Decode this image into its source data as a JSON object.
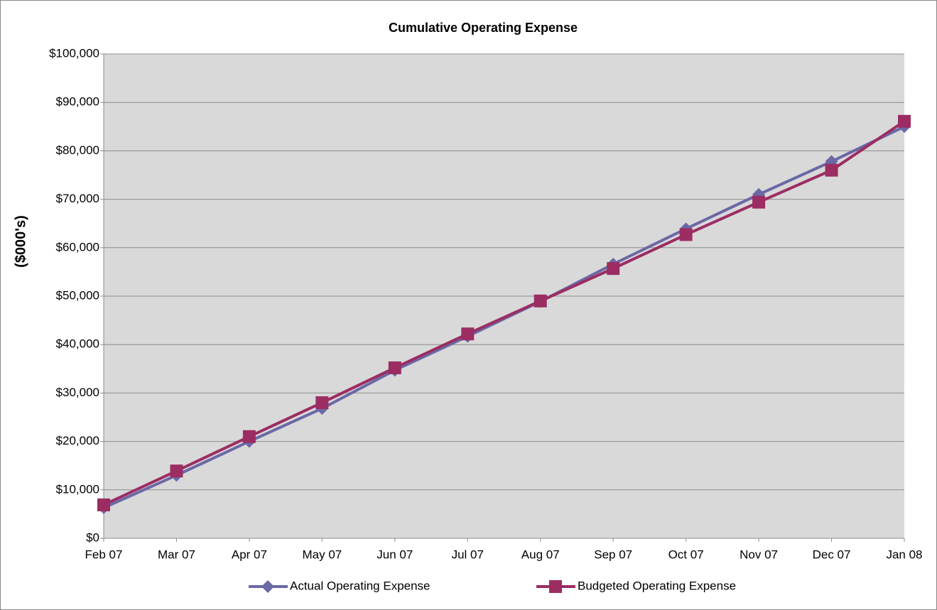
{
  "chart_data": {
    "type": "line",
    "title": "Cumulative Operating Expense",
    "y_label": "($000's)",
    "categories": [
      "Feb 07",
      "Mar 07",
      "Apr 07",
      "May 07",
      "Jun 07",
      "Jul 07",
      "Aug 07",
      "Sep 07",
      "Oct 07",
      "Nov 07",
      "Dec 07",
      "Jan 08"
    ],
    "series": [
      {
        "name": "Actual Operating Expense",
        "color": "#6b68a6",
        "marker": "diamond",
        "values": [
          6300,
          13000,
          20000,
          26800,
          34700,
          41700,
          48900,
          56600,
          63900,
          71000,
          77800,
          85000
        ]
      },
      {
        "name": "Budgeted Operating Expense",
        "color": "#9b2d62",
        "marker": "square",
        "values": [
          6900,
          13900,
          21000,
          28000,
          35200,
          42200,
          49000,
          55700,
          62700,
          69400,
          76000,
          86100
        ]
      }
    ],
    "ylim": [
      0,
      100000
    ],
    "yticks": [
      {
        "value": 0,
        "label": "$0"
      },
      {
        "value": 10000,
        "label": "$10,000"
      },
      {
        "value": 20000,
        "label": "$20,000"
      },
      {
        "value": 30000,
        "label": "$30,000"
      },
      {
        "value": 40000,
        "label": "$40,000"
      },
      {
        "value": 50000,
        "label": "$50,000"
      },
      {
        "value": 60000,
        "label": "$60,000"
      },
      {
        "value": 70000,
        "label": "$70,000"
      },
      {
        "value": 80000,
        "label": "$80,000"
      },
      {
        "value": 90000,
        "label": "$90,000"
      },
      {
        "value": 100000,
        "label": "$100,000"
      }
    ],
    "grid": true,
    "legend": "bottom"
  }
}
